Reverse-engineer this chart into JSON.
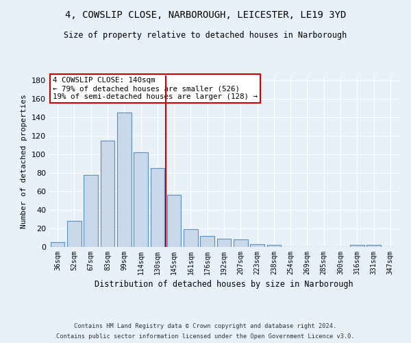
{
  "title_line1": "4, COWSLIP CLOSE, NARBOROUGH, LEICESTER, LE19 3YD",
  "title_line2": "Size of property relative to detached houses in Narborough",
  "xlabel": "Distribution of detached houses by size in Narborough",
  "ylabel": "Number of detached properties",
  "categories": [
    "36sqm",
    "52sqm",
    "67sqm",
    "83sqm",
    "99sqm",
    "114sqm",
    "130sqm",
    "145sqm",
    "161sqm",
    "176sqm",
    "192sqm",
    "207sqm",
    "223sqm",
    "238sqm",
    "254sqm",
    "269sqm",
    "285sqm",
    "300sqm",
    "316sqm",
    "331sqm",
    "347sqm"
  ],
  "values": [
    5,
    28,
    78,
    115,
    145,
    102,
    85,
    56,
    19,
    12,
    9,
    8,
    3,
    2,
    0,
    0,
    0,
    0,
    2,
    2,
    0
  ],
  "bar_color": "#c8d8e8",
  "bar_edge_color": "#5a8fc0",
  "vline_position": 7.5,
  "vline_color": "#cc0000",
  "annotation_text": "4 COWSLIP CLOSE: 140sqm\n← 79% of detached houses are smaller (526)\n19% of semi-detached houses are larger (128) →",
  "annotation_box_color": "#ffffff",
  "annotation_box_edge_color": "#cc0000",
  "ylim": [
    0,
    185
  ],
  "yticks": [
    0,
    20,
    40,
    60,
    80,
    100,
    120,
    140,
    160,
    180
  ],
  "background_color": "#e8f0f8",
  "grid_color": "#ffffff",
  "footer_line1": "Contains HM Land Registry data © Crown copyright and database right 2024.",
  "footer_line2": "Contains public sector information licensed under the Open Government Licence v3.0."
}
